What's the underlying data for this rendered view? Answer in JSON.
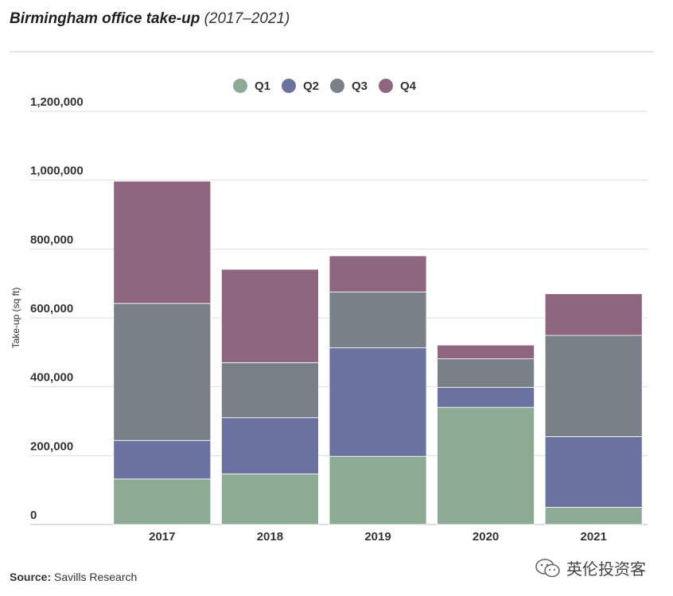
{
  "title": {
    "main": "Birmingham office take-up",
    "sub": "(2017–2021)"
  },
  "source": {
    "label": "Source:",
    "text": "Savills Research"
  },
  "watermark": {
    "text": "英伦投资客",
    "icon": "wechat-icon"
  },
  "chart_data": {
    "type": "bar",
    "stacked": true,
    "categories": [
      "2017",
      "2018",
      "2019",
      "2020",
      "2021"
    ],
    "series": [
      {
        "name": "Q1",
        "color": "#8daa95",
        "values": [
          132000,
          147000,
          198000,
          340000,
          50000
        ]
      },
      {
        "name": "Q2",
        "color": "#6a72a0",
        "values": [
          112000,
          163000,
          315000,
          58000,
          205000
        ]
      },
      {
        "name": "Q3",
        "color": "#7a8088",
        "values": [
          398000,
          160000,
          162000,
          83000,
          294000
        ]
      },
      {
        "name": "Q4",
        "color": "#8e6680",
        "values": [
          355000,
          271000,
          105000,
          40000,
          121000
        ]
      }
    ],
    "ylabel": "Take-up (sq ft)",
    "xlabel": "",
    "ylim": [
      0,
      1200000
    ],
    "yticks": [
      0,
      200000,
      400000,
      600000,
      800000,
      1000000,
      1200000
    ],
    "ytick_labels": [
      "0",
      "200,000",
      "400,000",
      "600,000",
      "800,000",
      "1,000,000",
      "1,200,000"
    ],
    "grid": true,
    "legend_position": "top-center"
  }
}
